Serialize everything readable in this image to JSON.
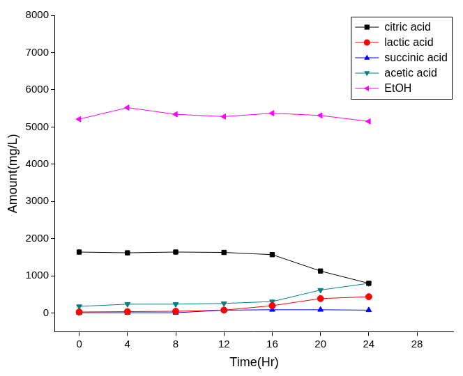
{
  "chart_data": {
    "type": "line",
    "x_label": "Time(Hr)",
    "y_label": "Amount(mg/L)",
    "x": [
      0,
      4,
      8,
      12,
      16,
      20,
      24
    ],
    "series": [
      {
        "name": "citric acid",
        "color": "#000000",
        "marker": "square",
        "values": [
          1640,
          1620,
          1640,
          1630,
          1570,
          1130,
          800
        ]
      },
      {
        "name": "lactic acid",
        "color": "#ff0000",
        "marker": "circle",
        "values": [
          30,
          40,
          50,
          80,
          200,
          390,
          440
        ]
      },
      {
        "name": "succinic acid",
        "color": "#0000ff",
        "marker": "triangle_up",
        "values": [
          10,
          10,
          10,
          80,
          90,
          90,
          80
        ]
      },
      {
        "name": "acetic acid",
        "color": "#008080",
        "marker": "triangle_down",
        "values": [
          180,
          240,
          240,
          260,
          310,
          620,
          800
        ]
      },
      {
        "name": "EtOH",
        "color": "#ff00ff",
        "marker": "triangle_left",
        "values": [
          5210,
          5520,
          5340,
          5280,
          5370,
          5310,
          5150
        ]
      }
    ],
    "xlim": [
      -2,
      31
    ],
    "xticks": [
      0,
      4,
      8,
      12,
      16,
      20,
      24,
      28
    ],
    "ylim": [
      -500,
      8000
    ],
    "yticks": [
      0,
      1000,
      2000,
      3000,
      4000,
      5000,
      6000,
      7000,
      8000
    ],
    "grid": false,
    "legend": "top-right"
  }
}
